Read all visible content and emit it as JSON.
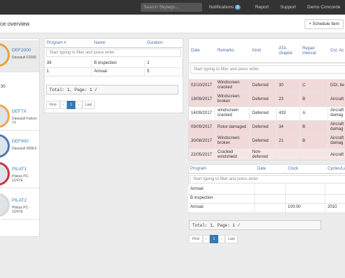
{
  "navbar": {
    "search_placeholder": "Search Skylegs...",
    "notifications": "Notifications",
    "notifications_count": "8",
    "report": "Report",
    "support": "Support",
    "user": "Demo Concorde"
  },
  "header": {
    "title": "ce overview",
    "button": "Schedule Item"
  },
  "aircraft": {
    "partial_value": "30",
    "items": [
      {
        "reg": "DEF2000",
        "type": "Dassault F2000",
        "color": "#e8a23a",
        "active": true
      },
      {
        "reg": "DEF7X",
        "type": "Dassault Falcon 7X",
        "color": "#f0a64a",
        "active": false
      },
      {
        "reg": "DEF900",
        "type": "Dassault 900EX",
        "color": "#4a78b8",
        "active": false
      },
      {
        "reg": "PILAT1",
        "type": "Pilatus PC-12/47E",
        "color": "#c8363a",
        "active": false
      },
      {
        "reg": "PILAT2",
        "type": "Pilatus PC-12/47E",
        "color": "#d8d8d8",
        "active": false
      }
    ]
  },
  "programs": {
    "columns": [
      "Program #",
      "Name",
      "Duration"
    ],
    "filter": "Start typing to filter and press enter",
    "rows": [
      [
        "39",
        "B inspection",
        "1"
      ],
      [
        "1",
        "Annual",
        "5"
      ]
    ],
    "total": "Total: 1, Page: 1 /",
    "pagination": [
      "First",
      "‹",
      "1",
      "›",
      "Last"
    ]
  },
  "defects": {
    "columns": [
      "Date",
      "Remarks",
      "Kind",
      "ATA chapter",
      "Repair interval",
      "Cor. Ac"
    ],
    "filter": "Start typing to filter and press enter",
    "rows": [
      [
        "02/10/2017",
        "Windscreen cracked",
        "Deferred",
        "30",
        "C",
        "DDI, ite"
      ],
      [
        "19/09/2017",
        "Windscreen broken",
        "Deferred",
        "23",
        "B",
        "Aircraft"
      ],
      [
        "14/09/2017",
        "windscreen cracked",
        "Deferred",
        "433",
        "A",
        "Aircraft damag"
      ],
      [
        "09/09/2017",
        "Rotor damaged",
        "Deferred",
        "34",
        "B",
        "Aircraft damag"
      ],
      [
        "30/08/2017",
        "Windscreen broken",
        "Deferred",
        "21",
        "B",
        "Aircraft damag"
      ],
      [
        "22/05/2017",
        "Cracked windshield",
        "Non-deferred",
        "",
        "",
        "Aircraft"
      ]
    ]
  },
  "schedule": {
    "columns": [
      "Program",
      "Date",
      "Clock",
      "Cycles/La"
    ],
    "filter": "Start typing to filter and press enter",
    "rows": [
      [
        "Annual",
        "",
        "",
        ""
      ],
      [
        "B inspection",
        "",
        "",
        ""
      ],
      [
        "Annual",
        "",
        "100:00",
        "2010"
      ]
    ],
    "total": "Total: 1, Page: 1 /",
    "pagination": [
      "First",
      "‹",
      "1",
      "›",
      "Last"
    ]
  }
}
